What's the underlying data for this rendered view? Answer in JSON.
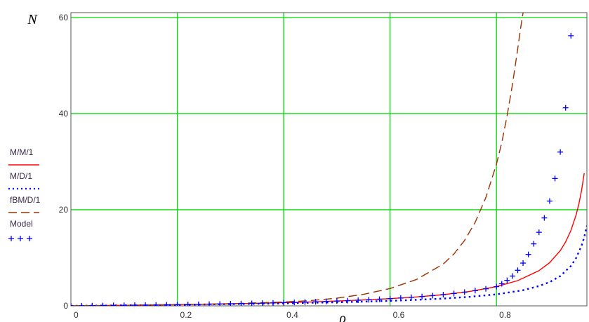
{
  "chart_data": {
    "type": "line",
    "title": "",
    "xlabel": "ρ",
    "ylabel": "N",
    "xlim": [
      0,
      0.97
    ],
    "ylim": [
      0,
      61
    ],
    "grid": true,
    "grid_color": "#00dd00",
    "x_ticks": [
      "0",
      "0.2",
      "0.4",
      "0.6",
      "0.8"
    ],
    "y_ticks": [
      "0",
      "20",
      "40",
      "60"
    ],
    "legend_position": "left",
    "series": [
      {
        "name": "M/M/1",
        "style": "solid",
        "marker": "",
        "color": "#ff0000",
        "x": [
          0.0,
          0.05,
          0.1,
          0.15,
          0.2,
          0.25,
          0.3,
          0.35,
          0.4,
          0.45,
          0.5,
          0.55,
          0.6,
          0.65,
          0.7,
          0.75,
          0.8,
          0.84,
          0.88,
          0.9,
          0.92,
          0.93,
          0.94,
          0.95,
          0.955,
          0.96,
          0.965
        ],
        "y": [
          0.0,
          0.05,
          0.11,
          0.18,
          0.25,
          0.33,
          0.43,
          0.54,
          0.67,
          0.82,
          1.0,
          1.22,
          1.5,
          1.86,
          2.33,
          3.0,
          4.0,
          5.25,
          7.33,
          9.0,
          11.5,
          13.3,
          15.7,
          19.0,
          21.2,
          24.0,
          27.6
        ]
      },
      {
        "name": "M/D/1",
        "style": "dotted",
        "marker": "",
        "color": "#0000ff",
        "x": [
          0.0,
          0.05,
          0.1,
          0.15,
          0.2,
          0.25,
          0.3,
          0.35,
          0.4,
          0.45,
          0.5,
          0.55,
          0.6,
          0.65,
          0.7,
          0.75,
          0.8,
          0.85,
          0.88,
          0.9,
          0.92,
          0.94,
          0.95,
          0.96,
          0.965,
          0.97
        ],
        "y": [
          0.0,
          0.05,
          0.11,
          0.16,
          0.22,
          0.29,
          0.36,
          0.44,
          0.53,
          0.64,
          0.75,
          0.89,
          1.05,
          1.25,
          1.52,
          1.88,
          2.4,
          3.26,
          4.13,
          4.95,
          6.2,
          8.3,
          10.0,
          12.5,
          14.3,
          16.7
        ]
      },
      {
        "name": "fBM/D/1",
        "style": "dashed",
        "marker": "",
        "color": "#993300",
        "x": [
          0.0,
          0.1,
          0.2,
          0.3,
          0.4,
          0.45,
          0.5,
          0.55,
          0.6,
          0.65,
          0.7,
          0.72,
          0.74,
          0.76,
          0.78,
          0.8,
          0.81,
          0.82,
          0.83,
          0.84,
          0.845,
          0.85
        ],
        "y": [
          0.0,
          0.1,
          0.25,
          0.45,
          0.8,
          1.1,
          1.6,
          2.4,
          3.6,
          5.5,
          8.7,
          10.8,
          13.6,
          17.4,
          22.5,
          29.5,
          34.0,
          39.5,
          46.0,
          53.5,
          57.5,
          61.0
        ]
      },
      {
        "name": "Model",
        "style": "none",
        "marker": "+",
        "color": "#0000ff",
        "x": [
          0.0,
          0.02,
          0.04,
          0.06,
          0.08,
          0.1,
          0.12,
          0.14,
          0.16,
          0.18,
          0.2,
          0.22,
          0.24,
          0.26,
          0.28,
          0.3,
          0.32,
          0.34,
          0.36,
          0.38,
          0.4,
          0.42,
          0.44,
          0.46,
          0.48,
          0.5,
          0.52,
          0.54,
          0.56,
          0.58,
          0.6,
          0.62,
          0.64,
          0.66,
          0.68,
          0.7,
          0.72,
          0.74,
          0.76,
          0.78,
          0.8,
          0.81,
          0.82,
          0.83,
          0.84,
          0.85,
          0.86,
          0.87,
          0.88,
          0.89,
          0.9,
          0.91,
          0.92,
          0.93,
          0.94
        ],
        "y": [
          0.0,
          0.02,
          0.04,
          0.06,
          0.09,
          0.11,
          0.14,
          0.16,
          0.19,
          0.22,
          0.25,
          0.28,
          0.32,
          0.35,
          0.39,
          0.43,
          0.47,
          0.52,
          0.56,
          0.61,
          0.67,
          0.72,
          0.79,
          0.85,
          0.92,
          1.0,
          1.08,
          1.17,
          1.27,
          1.38,
          1.5,
          1.63,
          1.78,
          1.94,
          2.13,
          2.33,
          2.57,
          2.85,
          3.17,
          3.55,
          4.0,
          4.6,
          5.3,
          6.2,
          7.4,
          8.9,
          10.7,
          12.9,
          15.3,
          18.3,
          21.8,
          26.5,
          32.0,
          41.2,
          56.2
        ]
      }
    ],
    "legend": [
      {
        "label": "M/M/1",
        "style": "solid",
        "color": "#ff0000"
      },
      {
        "label": "M/D/1",
        "style": "dotted",
        "color": "#0000ff"
      },
      {
        "label": "fBM/D/1",
        "style": "dashed",
        "color": "#993300"
      },
      {
        "label": "Model",
        "style": "markers",
        "marker_text": "+ + +",
        "color": "#0000ff"
      }
    ]
  }
}
